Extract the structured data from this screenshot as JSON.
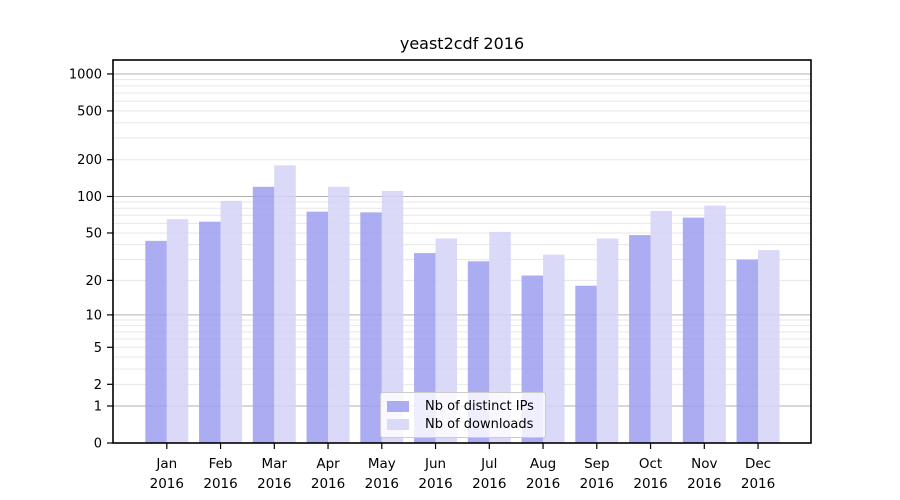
{
  "title": "yeast2cdf 2016",
  "colors": {
    "background": "#ffffff",
    "axis": "#000000",
    "major_grid": "#b0b0b0",
    "minor_grid": "#e7e7e7",
    "legend_border": "#cccccc",
    "ips_bar": "#9d9df0",
    "downloads_bar": "#d4d4f7"
  },
  "legend": {
    "items": [
      {
        "label": "Nb of distinct IPs",
        "color": "#9d9df0"
      },
      {
        "label": "Nb of downloads",
        "color": "#d4d4f7"
      }
    ]
  },
  "chart_data": {
    "type": "bar",
    "title": "yeast2cdf 2016",
    "categories": [
      "Jan",
      "Feb",
      "Mar",
      "Apr",
      "May",
      "Jun",
      "Jul",
      "Aug",
      "Sep",
      "Oct",
      "Nov",
      "Dec"
    ],
    "year_label": "2016",
    "series": [
      {
        "name": "Nb of distinct IPs",
        "color": "#9d9df0",
        "values": [
          43,
          62,
          120,
          75,
          74,
          34,
          29,
          22,
          18,
          48,
          67,
          30
        ]
      },
      {
        "name": "Nb of downloads",
        "color": "#d4d4f7",
        "values": [
          65,
          92,
          180,
          120,
          111,
          45,
          51,
          33,
          45,
          76,
          84,
          36
        ]
      }
    ],
    "xlabel": "",
    "ylabel": "",
    "y_scale": "log1p",
    "y_ticks": [
      0,
      1,
      2,
      5,
      10,
      20,
      50,
      100,
      200,
      500,
      1000
    ],
    "ylim": [
      0,
      1280
    ],
    "grid": "horizontal major and minor, log-spaced",
    "legend_position": "lower center"
  }
}
